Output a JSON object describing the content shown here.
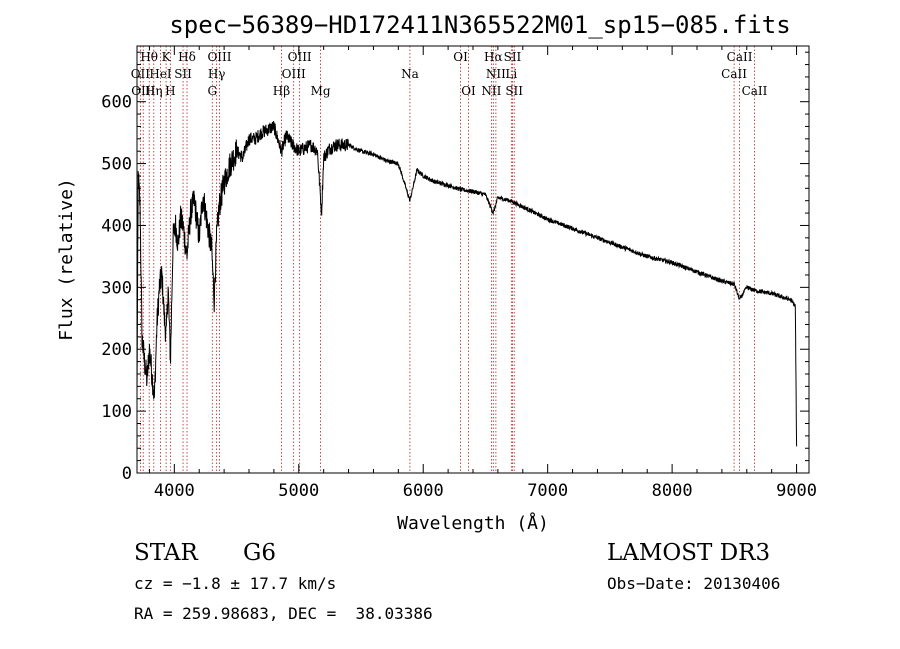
{
  "chart_data": {
    "type": "line",
    "title": "spec−56389−HD172411N365522M01_sp15−085.fits",
    "xlabel": "Wavelength (Å)",
    "ylabel": "Flux (relative)",
    "xlim": [
      3700,
      9100
    ],
    "ylim": [
      0,
      690
    ],
    "xticks": [
      4000,
      5000,
      6000,
      7000,
      8000,
      9000
    ],
    "yticks": [
      0,
      100,
      200,
      300,
      400,
      500,
      600
    ],
    "spectrum_anchors": {
      "x": [
        3700,
        3710,
        3725,
        3740,
        3760,
        3780,
        3800,
        3820,
        3840,
        3860,
        3880,
        3900,
        3920,
        3935,
        3950,
        3969,
        3990,
        4010,
        4030,
        4050,
        4070,
        4101,
        4130,
        4160,
        4200,
        4230,
        4260,
        4300,
        4320,
        4340,
        4360,
        4380,
        4400,
        4450,
        4500,
        4550,
        4600,
        4650,
        4700,
        4750,
        4800,
        4861,
        4900,
        4950,
        5000,
        5050,
        5100,
        5150,
        5183,
        5200,
        5250,
        5300,
        5400,
        5500,
        5600,
        5700,
        5800,
        5893,
        5950,
        6000,
        6100,
        6200,
        6300,
        6400,
        6500,
        6563,
        6600,
        6700,
        6800,
        7000,
        7200,
        7400,
        7600,
        7800,
        8000,
        8200,
        8400,
        8500,
        8542,
        8600,
        8662,
        8800,
        8950,
        8990,
        9000
      ],
      "y": [
        120,
        480,
        430,
        220,
        180,
        150,
        200,
        160,
        120,
        240,
        300,
        320,
        250,
        220,
        300,
        180,
        380,
        400,
        370,
        410,
        400,
        350,
        420,
        440,
        380,
        450,
        410,
        360,
        280,
        380,
        430,
        450,
        470,
        500,
        520,
        510,
        540,
        540,
        550,
        555,
        560,
        520,
        545,
        530,
        520,
        525,
        530,
        520,
        420,
        510,
        525,
        530,
        530,
        520,
        515,
        505,
        500,
        440,
        490,
        480,
        470,
        465,
        458,
        455,
        450,
        420,
        445,
        440,
        430,
        410,
        395,
        380,
        365,
        350,
        340,
        325,
        310,
        305,
        280,
        300,
        295,
        290,
        280,
        270,
        40
      ]
    },
    "lines": [
      {
        "name": "Hθ",
        "wave": 3798,
        "row": 0
      },
      {
        "name": "K",
        "wave": 3934,
        "row": 0
      },
      {
        "name": "Hδ",
        "wave": 4102,
        "row": 0
      },
      {
        "name": "OIII",
        "wave": 4363,
        "row": 0
      },
      {
        "name": "OIII",
        "wave": 5007,
        "row": 0
      },
      {
        "name": "OI",
        "wave": 6300,
        "row": 0
      },
      {
        "name": "Hα",
        "wave": 6563,
        "row": 0
      },
      {
        "name": "SII",
        "wave": 6717,
        "row": 0
      },
      {
        "name": "CaII",
        "wave": 8542,
        "row": 0
      },
      {
        "name": "OII",
        "wave": 3727,
        "row": 1
      },
      {
        "name": "HeI",
        "wave": 3889,
        "row": 1
      },
      {
        "name": "SII",
        "wave": 4070,
        "row": 1
      },
      {
        "name": "Hγ",
        "wave": 4340,
        "row": 1
      },
      {
        "name": "OIII",
        "wave": 4959,
        "row": 1
      },
      {
        "name": "Na",
        "wave": 5893,
        "row": 1
      },
      {
        "name": "NII",
        "wave": 6584,
        "row": 1
      },
      {
        "name": "Li",
        "wave": 6708,
        "row": 1
      },
      {
        "name": "CaII",
        "wave": 8498,
        "row": 1
      },
      {
        "name": "OIII",
        "wave": 3750,
        "row": 2
      },
      {
        "name": "Hη",
        "wave": 3835,
        "row": 2
      },
      {
        "name": "H",
        "wave": 3968,
        "row": 2
      },
      {
        "name": "G",
        "wave": 4305,
        "row": 2
      },
      {
        "name": "Hβ",
        "wave": 4861,
        "row": 2
      },
      {
        "name": "Mg",
        "wave": 5175,
        "row": 2
      },
      {
        "name": "OI",
        "wave": 6364,
        "row": 2
      },
      {
        "name": "NII",
        "wave": 6548,
        "row": 2
      },
      {
        "name": "SII",
        "wave": 6731,
        "row": 2
      },
      {
        "name": "CaII",
        "wave": 8662,
        "row": 2
      }
    ]
  },
  "info": {
    "object_class": "STAR",
    "subclass": "G6",
    "survey": "LAMOST DR3",
    "cz": "cz = −1.8 ± 17.7 km/s",
    "obs_date": "Obs−Date: 20130406",
    "coords": "RA = 259.98683, DEC =  38.03386"
  }
}
